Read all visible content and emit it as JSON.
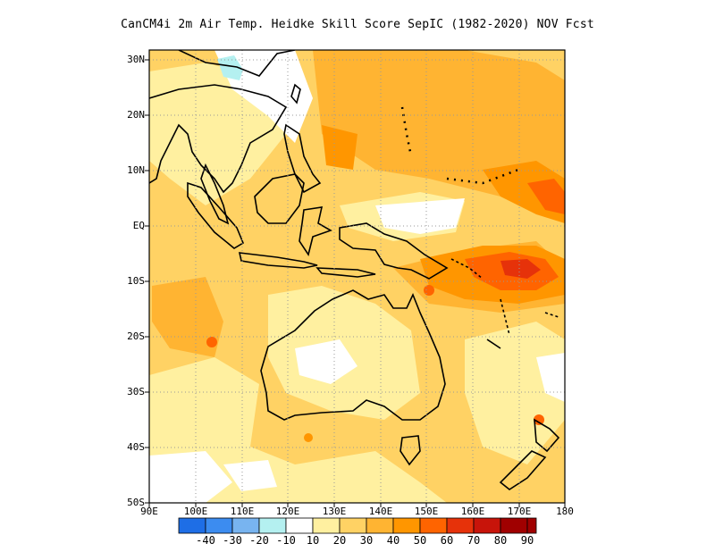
{
  "title": "CanCM4i  2m Air Temp. Heidke Skill Score SepIC (1982-2020) NOV Fcst",
  "lat_ticks": [
    "30N",
    "20N",
    "10N",
    "EQ",
    "10S",
    "20S",
    "30S",
    "40S",
    "50S"
  ],
  "lon_ticks": [
    "90E",
    "100E",
    "110E",
    "120E",
    "130E",
    "140E",
    "150E",
    "160E",
    "170E",
    "180"
  ],
  "extent": {
    "lon_min": 90,
    "lon_max": 180,
    "lat_min": -50,
    "lat_max": 32
  },
  "colorbar": {
    "labels": [
      "-40",
      "-30",
      "-20",
      "-10",
      "10",
      "20",
      "30",
      "40",
      "50",
      "60",
      "70",
      "80",
      "90"
    ],
    "colors": [
      "#1e6ee6",
      "#3c8cf0",
      "#78b4f0",
      "#b4f0f0",
      "#ffffff",
      "#fff0a0",
      "#ffd264",
      "#ffb432",
      "#ff9600",
      "#ff6400",
      "#e6320a",
      "#c8140a",
      "#a00000"
    ]
  },
  "map_colors": {
    "low": "#fff0a0",
    "mid": "#ffd264",
    "high": "#ffb432",
    "higher": "#ff9600",
    "peak": "#ff6400",
    "max": "#e6320a",
    "neutral": "#ffffff",
    "negative": "#b4f0f0"
  }
}
